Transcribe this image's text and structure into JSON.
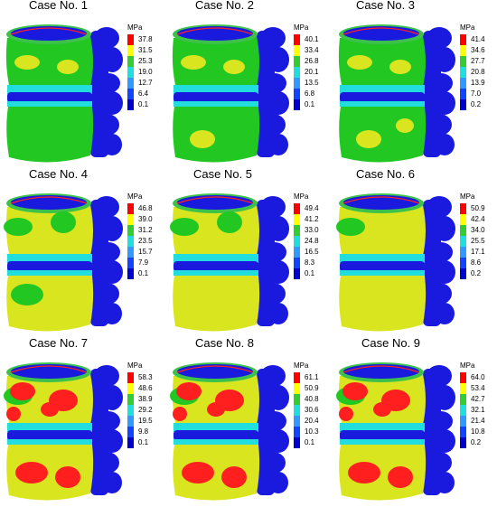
{
  "unit": "MPa",
  "legend_colors": [
    "#ff0000",
    "#ffff00",
    "#33cc33",
    "#22dddd",
    "#3399ff",
    "#1144ff",
    "#0000cc"
  ],
  "case_palette": [
    "#22c722",
    "#d9e51f",
    "#ff1f1f",
    "#1a1adf"
  ],
  "cases": [
    {
      "title": "Case No. 1",
      "ticks": [
        "37.8",
        "31.5",
        "25.3",
        "19.0",
        "12.7",
        "6.4",
        "0.1"
      ]
    },
    {
      "title": "Case No. 2",
      "ticks": [
        "40.1",
        "33.4",
        "26.8",
        "20.1",
        "13.5",
        "6.8",
        "0.1"
      ]
    },
    {
      "title": "Case No. 3",
      "ticks": [
        "41.4",
        "34.6",
        "27.7",
        "20.8",
        "13.9",
        "7.0",
        "0.2"
      ]
    },
    {
      "title": "Case No. 4",
      "ticks": [
        "46.8",
        "39.0",
        "31.2",
        "23.5",
        "15.7",
        "7.9",
        "0.1"
      ]
    },
    {
      "title": "Case No. 5",
      "ticks": [
        "49.4",
        "41.2",
        "33.0",
        "24.8",
        "16.5",
        "8.3",
        "0.1"
      ]
    },
    {
      "title": "Case No. 6",
      "ticks": [
        "50.9",
        "42.4",
        "34.0",
        "25.5",
        "17.1",
        "8.6",
        "0.2"
      ]
    },
    {
      "title": "Case No. 7",
      "ticks": [
        "58.3",
        "48.6",
        "38.9",
        "29.2",
        "19.5",
        "9.8",
        "0.1"
      ]
    },
    {
      "title": "Case No. 8",
      "ticks": [
        "61.1",
        "50.9",
        "40.8",
        "30.6",
        "20.4",
        "10.3",
        "0.1"
      ]
    },
    {
      "title": "Case No. 9",
      "ticks": [
        "64.0",
        "53.4",
        "42.7",
        "32.1",
        "21.4",
        "10.8",
        "0.2"
      ]
    }
  ]
}
